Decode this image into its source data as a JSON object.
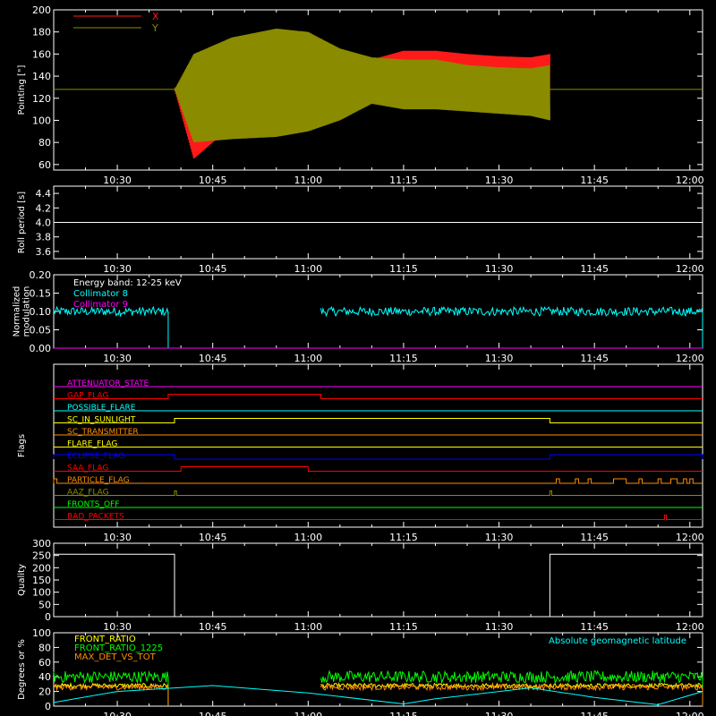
{
  "colors": {
    "background": "#000000",
    "axis": "#ffffff",
    "x_red": "#ff1a1a",
    "y_olive": "#8b8b00",
    "cyan": "#00ffff",
    "magenta": "#ff00ff",
    "white": "#ffffff",
    "green": "#00ff00",
    "yellow": "#ffff00",
    "orange": "#ff8c00",
    "blue": "#0000ff",
    "red": "#ff0000"
  },
  "time_axis": {
    "start": "10:20",
    "end": "12:02",
    "tick_labels": [
      "10:30",
      "10:45",
      "11:00",
      "11:15",
      "11:30",
      "11:45",
      "12:00"
    ]
  },
  "chart_data": [
    {
      "id": "pointing",
      "type": "line",
      "ylabel": "Pointing [\"]",
      "ylim": [
        55,
        200
      ],
      "yticks": [
        60,
        80,
        100,
        120,
        140,
        160,
        180,
        200
      ],
      "legend": [
        {
          "name": "X",
          "color": "#ff1a1a"
        },
        {
          "name": "Y",
          "color": "#8b8b00"
        }
      ],
      "legend_placement": "top-left",
      "constant_line": {
        "y": 128,
        "color": "#8b8b00"
      },
      "data_start": "10:39",
      "data_end": "11:38",
      "series": [
        {
          "name": "X",
          "color": "#ff1a1a",
          "envelope_x": [
            "10:39",
            "10:42",
            "10:48",
            "10:55",
            "11:00",
            "11:05",
            "11:10",
            "11:15",
            "11:20",
            "11:25",
            "11:30",
            "11:35",
            "11:38"
          ],
          "upper": [
            128,
            145,
            160,
            165,
            160,
            150,
            155,
            163,
            163,
            160,
            158,
            157,
            160
          ],
          "lower": [
            128,
            65,
            95,
            100,
            100,
            110,
            118,
            119,
            118,
            116,
            114,
            112,
            110
          ]
        },
        {
          "name": "Y",
          "color": "#8b8b00",
          "envelope_x": [
            "10:39",
            "10:42",
            "10:48",
            "10:55",
            "11:00",
            "11:05",
            "11:10",
            "11:15",
            "11:20",
            "11:25",
            "11:30",
            "11:35",
            "11:38"
          ],
          "upper": [
            128,
            160,
            175,
            183,
            180,
            165,
            157,
            155,
            155,
            150,
            148,
            147,
            150
          ],
          "lower": [
            128,
            80,
            83,
            85,
            90,
            100,
            115,
            110,
            110,
            108,
            106,
            104,
            100
          ]
        }
      ]
    },
    {
      "id": "roll-period",
      "type": "line",
      "ylabel": "Roll period [s]",
      "ylim": [
        3.5,
        4.5
      ],
      "yticks": [
        3.6,
        3.8,
        4.0,
        4.2,
        4.4
      ],
      "ytick_labels": [
        "3.6",
        "3.8",
        "4.0",
        "4.2",
        "4.4"
      ],
      "series": [
        {
          "color": "#ffffff",
          "x": [
            "10:20",
            "12:02"
          ],
          "y": [
            4.0,
            4.0
          ]
        }
      ]
    },
    {
      "id": "modulation",
      "type": "line",
      "ylabel_lines": [
        "Normalized",
        "modulation"
      ],
      "ylim": [
        0,
        0.2
      ],
      "yticks": [
        0,
        0.05,
        0.1,
        0.15,
        0.2
      ],
      "ytick_labels": [
        "0.00",
        "0.05",
        "0.10",
        "0.15",
        "0.20"
      ],
      "annotations": [
        {
          "text": "Energy band: 12-25 keV",
          "color": "#ffffff"
        },
        {
          "text": "Collimator 8",
          "color": "#00ffff"
        },
        {
          "text": "Collimator 9",
          "color": "#ff00ff"
        }
      ],
      "series": [
        {
          "name": "Collimator 8",
          "color": "#00ffff",
          "segments": [
            [
              "10:20",
              "10:38"
            ],
            [
              "11:02",
              "12:02"
            ]
          ],
          "level": 0.1,
          "noise": 0.012
        },
        {
          "name": "Collimator 9",
          "color": "#ff00ff",
          "x": [
            "10:20",
            "12:02"
          ],
          "y": [
            0,
            0
          ]
        }
      ]
    },
    {
      "id": "flags",
      "type": "line",
      "ylabel": "Flags",
      "flags": [
        {
          "name": "ATTENUATOR_STATE",
          "color": "#ff00ff",
          "high": []
        },
        {
          "name": "GAP_FLAG",
          "color": "#ff0000",
          "high": [
            [
              "10:38",
              "11:02"
            ]
          ]
        },
        {
          "name": "POSSIBLE_FLARE",
          "color": "#00ffff",
          "high": []
        },
        {
          "name": "SC_IN_SUNLIGHT",
          "color": "#ffff00",
          "high": [
            [
              "10:39",
              "11:38"
            ]
          ]
        },
        {
          "name": "SC_TRANSMITTER",
          "color": "#ff8c00",
          "high": []
        },
        {
          "name": "FLARE_FLAG",
          "color": "#ffff00",
          "high": []
        },
        {
          "name": "ECLIPSE_FLAG",
          "color": "#0000ff",
          "high": [
            [
              "10:20",
              "10:39"
            ],
            [
              "11:38",
              "12:02"
            ]
          ]
        },
        {
          "name": "SAA_FLAG",
          "color": "#ff0000",
          "high": [
            [
              "10:40",
              "11:00"
            ]
          ]
        },
        {
          "name": "PARTICLE_FLAG",
          "color": "#ff8c00",
          "high": [
            [
              "10:20",
              "10:20.5"
            ],
            [
              "11:39",
              "11:39.5"
            ],
            [
              "11:42",
              "11:42.5"
            ],
            [
              "11:44",
              "11:44.5"
            ],
            [
              "11:48",
              "11:50"
            ],
            [
              "11:52",
              "11:52.5"
            ],
            [
              "11:55",
              "11:55.5"
            ],
            [
              "11:57",
              "11:58"
            ],
            [
              "11:59",
              "11:59.5"
            ],
            [
              "12:00",
              "12:00.5"
            ]
          ]
        },
        {
          "name": "AAZ_FLAG",
          "color": "#8b8b00",
          "high": [
            [
              "10:39",
              "10:39.3"
            ],
            [
              "11:38",
              "11:38.3"
            ]
          ]
        },
        {
          "name": "FRONTS_OFF",
          "color": "#00ff00",
          "high": []
        },
        {
          "name": "BAD_PACKETS",
          "color": "#ff0000",
          "high": [
            [
              "11:56",
              "11:56.3"
            ]
          ]
        }
      ]
    },
    {
      "id": "quality",
      "type": "line",
      "ylabel": "Quality",
      "ylim": [
        0,
        300
      ],
      "yticks": [
        0,
        50,
        100,
        150,
        200,
        250,
        300
      ],
      "series": [
        {
          "color": "#ffffff",
          "x": [
            "10:20",
            "10:39",
            "10:39",
            "11:38",
            "11:38",
            "12:02"
          ],
          "y": [
            255,
            255,
            0,
            0,
            255,
            255
          ]
        }
      ]
    },
    {
      "id": "ratios",
      "type": "line",
      "ylabel": "Degrees or %",
      "ylim": [
        0,
        100
      ],
      "yticks": [
        0,
        20,
        40,
        60,
        80,
        100
      ],
      "legend_placement": "top-left",
      "series": [
        {
          "name": "FRONT_RATIO",
          "color": "#ffff00",
          "segments": [
            [
              "10:20",
              "10:38"
            ],
            [
              "11:02",
              "12:02"
            ]
          ],
          "level": 28,
          "noise": 3
        },
        {
          "name": "FRONT_RATIO_1225",
          "color": "#00ff00",
          "segments": [
            [
              "10:20",
              "10:38"
            ],
            [
              "11:02",
              "12:02"
            ]
          ],
          "level": 40,
          "noise": 8
        },
        {
          "name": "MAX_DET_VS_TOT",
          "color": "#ff8c00",
          "segments": [
            [
              "10:20",
              "10:38"
            ],
            [
              "11:02",
              "12:02"
            ]
          ],
          "level": 26,
          "noise": 4
        },
        {
          "name": "Absolute geomagnetic latitude",
          "color": "#00ffff",
          "label_placement": "top-right",
          "x": [
            "10:20",
            "10:30",
            "10:45",
            "11:00",
            "11:15",
            "11:20",
            "11:35",
            "11:45",
            "11:55",
            "12:02"
          ],
          "y": [
            5,
            20,
            28,
            18,
            3,
            10,
            25,
            12,
            2,
            20
          ]
        }
      ]
    }
  ]
}
